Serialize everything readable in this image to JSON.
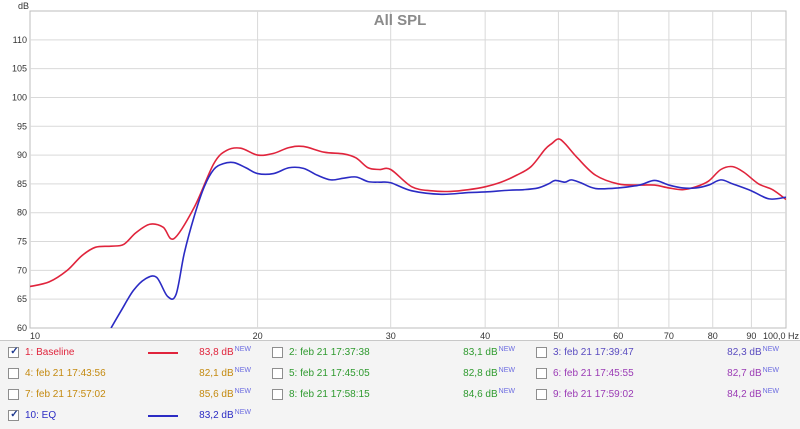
{
  "chart_data": {
    "type": "line",
    "title": "All SPL",
    "y_unit": "dB",
    "x_unit": "Hz",
    "x_scale": "log",
    "xlim": [
      10,
      100
    ],
    "ylim": [
      60,
      115
    ],
    "x_ticks": [
      10,
      20,
      30,
      40,
      50,
      60,
      70,
      80,
      90,
      100
    ],
    "x_tick_labels": [
      "10",
      "20",
      "30",
      "40",
      "50",
      "60",
      "70",
      "80",
      "90",
      "100,0 Hz"
    ],
    "y_ticks": [
      60,
      65,
      70,
      75,
      80,
      85,
      90,
      95,
      100,
      105,
      110
    ],
    "grid": true,
    "series": [
      {
        "name": "1: Baseline",
        "color": "#e0243c",
        "x": [
          10,
          10.6,
          11.2,
          11.7,
          12.2,
          12.8,
          13.3,
          13.8,
          14.4,
          15.0,
          15.5,
          16.5,
          17.5,
          18.2,
          19.0,
          20.0,
          21.0,
          22.0,
          23.0,
          24.5,
          26.0,
          27.0,
          28.0,
          29.0,
          30.0,
          32.0,
          34.0,
          36.0,
          38.0,
          40.0,
          42.0,
          44.0,
          46.0,
          48.0,
          49.0,
          50.0,
          51.0,
          53.0,
          56.0,
          60.0,
          64.0,
          67.0,
          70.0,
          73.0,
          76.0,
          79.0,
          82.0,
          85.0,
          88.0,
          92.0,
          96.0,
          100.0
        ],
        "values": [
          67.2,
          68.0,
          70.0,
          72.5,
          74.0,
          74.2,
          74.5,
          76.5,
          78.0,
          77.5,
          75.5,
          81.0,
          88.5,
          90.8,
          91.2,
          90.0,
          90.3,
          91.3,
          91.5,
          90.5,
          90.2,
          89.5,
          87.8,
          87.5,
          87.5,
          84.5,
          83.8,
          83.7,
          84.0,
          84.5,
          85.3,
          86.5,
          88.0,
          91.0,
          92.0,
          92.8,
          92.0,
          89.5,
          86.5,
          85.0,
          84.8,
          84.8,
          84.3,
          84.0,
          84.5,
          85.5,
          87.5,
          88.0,
          87.0,
          85.0,
          84.0,
          82.3
        ]
      },
      {
        "name": "10: EQ",
        "color": "#2b2bc4",
        "x": [
          12.8,
          13.2,
          13.7,
          14.2,
          14.7,
          15.2,
          15.6,
          16.0,
          16.5,
          17.0,
          17.5,
          18.0,
          18.6,
          19.3,
          20.0,
          21.0,
          22.0,
          23.0,
          24.0,
          25.0,
          26.0,
          27.0,
          28.0,
          29.0,
          30.0,
          32.0,
          35.0,
          38.0,
          40.0,
          43.0,
          45.0,
          47.0,
          48.5,
          49.5,
          51.0,
          52.0,
          53.5,
          56.0,
          60.0,
          64.0,
          67.0,
          70.0,
          73.0,
          76.0,
          79.0,
          82.0,
          85.0,
          90.0,
          95.0,
          100.0
        ],
        "values": [
          60.0,
          63.0,
          66.5,
          68.5,
          68.8,
          65.5,
          65.8,
          73.0,
          79.5,
          84.5,
          87.5,
          88.5,
          88.7,
          87.8,
          86.8,
          86.8,
          87.8,
          87.7,
          86.5,
          85.7,
          86.0,
          86.2,
          85.4,
          85.3,
          85.2,
          83.8,
          83.2,
          83.5,
          83.6,
          83.9,
          84.0,
          84.3,
          85.0,
          85.6,
          85.3,
          85.7,
          85.2,
          84.2,
          84.3,
          84.8,
          85.6,
          84.8,
          84.3,
          84.3,
          84.8,
          85.7,
          85.0,
          83.8,
          82.4,
          82.7
        ]
      }
    ]
  },
  "legend": [
    {
      "label": "1: Baseline",
      "checked": true,
      "value": "83,8 dB",
      "badge": "NEW",
      "color": "#e0243c",
      "line_color": "#e0243c"
    },
    {
      "label": "2: feb 21 17:37:38",
      "checked": false,
      "value": "83,1 dB",
      "badge": "NEW",
      "color": "#2f9a2f",
      "line_color": ""
    },
    {
      "label": "3: feb 21 17:39:47",
      "checked": false,
      "value": "82,3 dB",
      "badge": "NEW",
      "color": "#5a4cc0",
      "line_color": ""
    },
    {
      "label": "4: feb 21 17:43:56",
      "checked": false,
      "value": "82,1 dB",
      "badge": "NEW",
      "color": "#c48a10",
      "line_color": ""
    },
    {
      "label": "5: feb 21 17:45:05",
      "checked": false,
      "value": "82,8 dB",
      "badge": "NEW",
      "color": "#2f9a2f",
      "line_color": ""
    },
    {
      "label": "6: feb 21 17:45:55",
      "checked": false,
      "value": "82,7 dB",
      "badge": "NEW",
      "color": "#9b3bb5",
      "line_color": ""
    },
    {
      "label": "7: feb 21 17:57:02",
      "checked": false,
      "value": "85,6 dB",
      "badge": "NEW",
      "color": "#c48a10",
      "line_color": ""
    },
    {
      "label": "8: feb 21 17:58:15",
      "checked": false,
      "value": "84,6 dB",
      "badge": "NEW",
      "color": "#2f9a2f",
      "line_color": ""
    },
    {
      "label": "9: feb 21 17:59:02",
      "checked": false,
      "value": "84,2 dB",
      "badge": "NEW",
      "color": "#9b3bb5",
      "line_color": ""
    },
    {
      "label": "10: EQ",
      "checked": true,
      "value": "83,2 dB",
      "badge": "NEW",
      "color": "#2b2bc4",
      "line_color": "#2b2bc4"
    }
  ]
}
